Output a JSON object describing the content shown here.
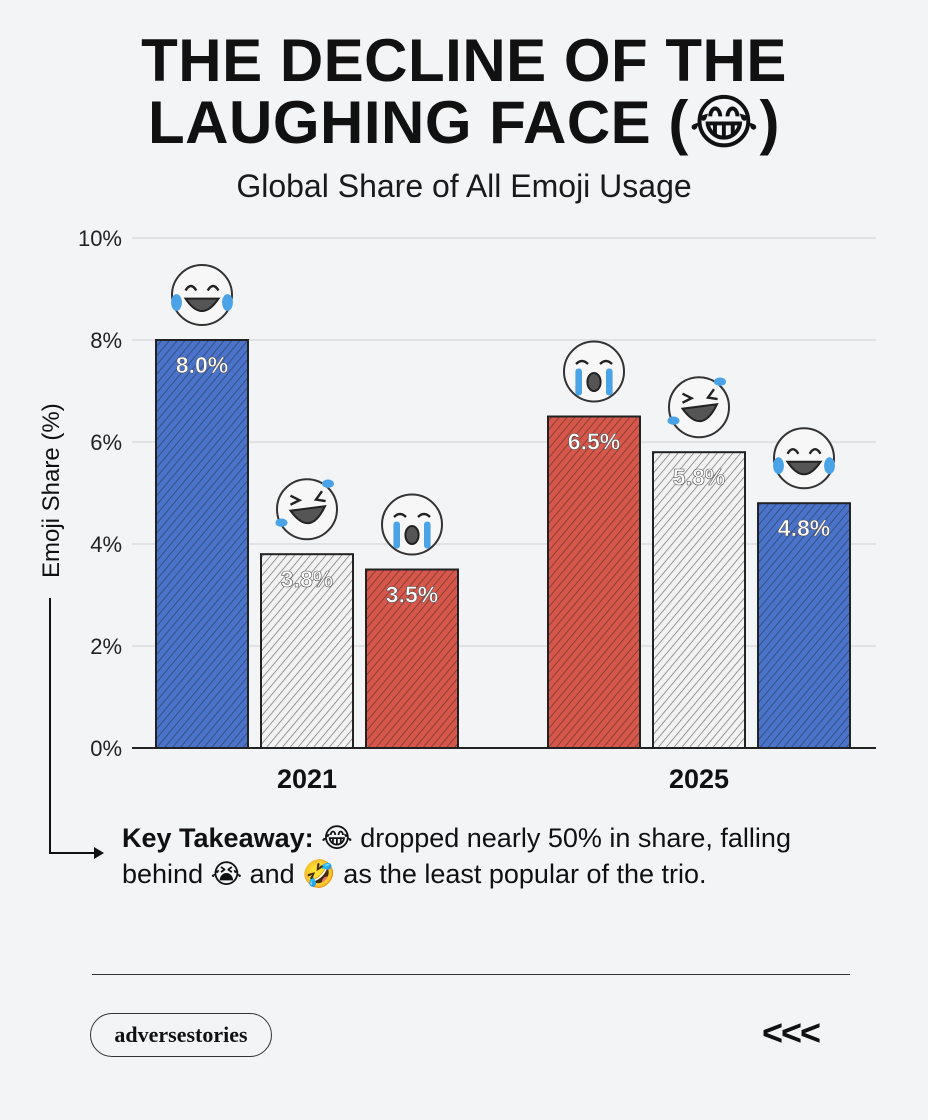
{
  "title_line1": "THE DECLINE OF THE",
  "title_line2": "LAUGHING FACE (😂)",
  "subtitle": "Global Share of All Emoji Usage",
  "takeaway": {
    "label": "Key Takeaway:",
    "text": "😂 dropped nearly 50% in share, falling behind 😭 and 🤣 as the least popular of the trio."
  },
  "brand": "adversestories",
  "nav": "<<<",
  "chart_data": {
    "type": "bar",
    "ylabel": "Emoji Share (%)",
    "ylim": [
      0,
      10
    ],
    "yticks": [
      "0%",
      "2%",
      "4%",
      "6%",
      "8%",
      "10%"
    ],
    "grid": true,
    "groups": [
      {
        "category": "2021",
        "bars": [
          {
            "emoji": "laughing-face-with-tears",
            "value": 8.0,
            "label": "8.0%",
            "color": "#4a73cc"
          },
          {
            "emoji": "rolling-on-floor-laughing",
            "value": 3.8,
            "label": "3.8%",
            "color": "#f2f2f2"
          },
          {
            "emoji": "loudly-crying-face",
            "value": 3.5,
            "label": "3.5%",
            "color": "#d7574b"
          }
        ]
      },
      {
        "category": "2025",
        "bars": [
          {
            "emoji": "loudly-crying-face",
            "value": 6.5,
            "label": "6.5%",
            "color": "#d7574b"
          },
          {
            "emoji": "rolling-on-floor-laughing",
            "value": 5.8,
            "label": "5.8%",
            "color": "#f2f2f2"
          },
          {
            "emoji": "laughing-face-with-tears",
            "value": 4.8,
            "label": "4.8%",
            "color": "#4a73cc"
          }
        ]
      }
    ]
  }
}
